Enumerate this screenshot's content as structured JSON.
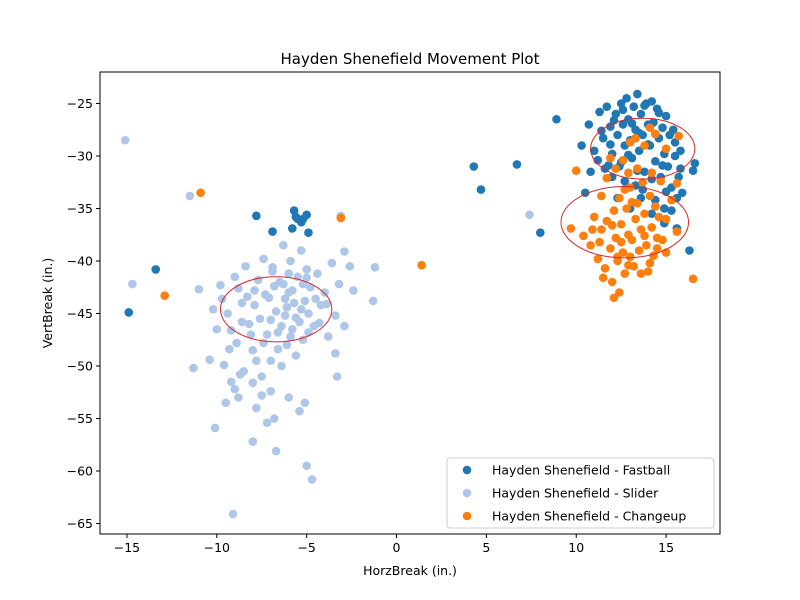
{
  "chart_data": {
    "type": "scatter",
    "title": "Hayden Shenefield Movement Plot",
    "xlabel": "HorzBreak (in.)",
    "ylabel": "VertBreak (in.)",
    "xlim": [
      -16.5,
      18.0
    ],
    "ylim": [
      -66.0,
      -22.0
    ],
    "xticks": [
      -15,
      -10,
      -5,
      0,
      5,
      10,
      15
    ],
    "yticks": [
      -25,
      -30,
      -35,
      -40,
      -45,
      -50,
      -55,
      -60,
      -65
    ],
    "grid": false,
    "legend_position": "lower-right",
    "series": [
      {
        "name": "Hayden Shenefield - Fastball",
        "color": "#1f77b4",
        "points": [
          [
            -14.9,
            -44.9
          ],
          [
            -13.4,
            -40.8
          ],
          [
            -7.8,
            -35.7
          ],
          [
            -6.9,
            -37.2
          ],
          [
            -5.7,
            -35.2
          ],
          [
            -5.5,
            -36.0
          ],
          [
            -5.2,
            -36.0
          ],
          [
            -5.0,
            -35.6
          ],
          [
            -5.8,
            -36.9
          ],
          [
            -4.9,
            -37.3
          ],
          [
            -5.6,
            -35.8
          ],
          [
            -5.3,
            -36.3
          ],
          [
            4.3,
            -31.0
          ],
          [
            4.7,
            -33.2
          ],
          [
            6.7,
            -30.8
          ],
          [
            8.0,
            -37.3
          ],
          [
            8.9,
            -26.5
          ],
          [
            16.3,
            -39.0
          ],
          [
            10.3,
            -29.0
          ],
          [
            10.7,
            -27.0
          ],
          [
            11.0,
            -29.5
          ],
          [
            11.3,
            -25.8
          ],
          [
            11.5,
            -28.3
          ],
          [
            11.7,
            -25.3
          ],
          [
            11.9,
            -27.2
          ],
          [
            12.0,
            -29.8
          ],
          [
            12.2,
            -26.0
          ],
          [
            12.3,
            -28.0
          ],
          [
            12.4,
            -31.0
          ],
          [
            12.5,
            -25.0
          ],
          [
            12.6,
            -27.0
          ],
          [
            12.7,
            -29.0
          ],
          [
            12.8,
            -24.5
          ],
          [
            12.9,
            -26.5
          ],
          [
            13.0,
            -28.5
          ],
          [
            13.1,
            -30.2
          ],
          [
            13.2,
            -25.3
          ],
          [
            13.3,
            -27.5
          ],
          [
            13.4,
            -24.1
          ],
          [
            13.5,
            -29.5
          ],
          [
            13.6,
            -26.0
          ],
          [
            13.7,
            -28.0
          ],
          [
            13.8,
            -31.5
          ],
          [
            13.9,
            -25.0
          ],
          [
            14.0,
            -27.0
          ],
          [
            14.1,
            -29.0
          ],
          [
            14.2,
            -24.8
          ],
          [
            14.3,
            -26.8
          ],
          [
            14.4,
            -30.5
          ],
          [
            14.5,
            -25.5
          ],
          [
            14.6,
            -28.3
          ],
          [
            14.7,
            -32.0
          ],
          [
            14.8,
            -27.3
          ],
          [
            14.9,
            -29.8
          ],
          [
            15.0,
            -26.2
          ],
          [
            15.1,
            -31.0
          ],
          [
            15.2,
            -28.0
          ],
          [
            15.3,
            -33.0
          ],
          [
            15.4,
            -27.5
          ],
          [
            15.5,
            -30.0
          ],
          [
            15.6,
            -34.0
          ],
          [
            15.7,
            -32.0
          ],
          [
            15.8,
            -29.5
          ],
          [
            15.9,
            -33.5
          ],
          [
            16.5,
            -31.4
          ],
          [
            16.6,
            -30.7
          ],
          [
            14.9,
            -35.0
          ],
          [
            13.6,
            -34.0
          ],
          [
            12.8,
            -33.0
          ],
          [
            12.0,
            -32.0
          ],
          [
            11.6,
            -31.2
          ],
          [
            11.2,
            -30.4
          ],
          [
            10.8,
            -31.5
          ],
          [
            10.5,
            -33.5
          ],
          [
            14.2,
            -35.5
          ],
          [
            13.0,
            -35.0
          ],
          [
            15.3,
            -35.2
          ],
          [
            12.3,
            -34.0
          ],
          [
            12.6,
            -25.6
          ],
          [
            13.1,
            -26.9
          ],
          [
            13.5,
            -27.8
          ],
          [
            14.0,
            -28.9
          ],
          [
            14.4,
            -27.9
          ],
          [
            14.8,
            -30.9
          ],
          [
            12.9,
            -29.9
          ],
          [
            13.4,
            -31.4
          ],
          [
            14.2,
            -32.2
          ],
          [
            15.0,
            -33.4
          ],
          [
            13.7,
            -33.2
          ],
          [
            12.7,
            -32.4
          ],
          [
            11.9,
            -28.9
          ],
          [
            11.4,
            -27.6
          ],
          [
            12.1,
            -26.6
          ],
          [
            13.8,
            -25.2
          ],
          [
            14.6,
            -25.9
          ],
          [
            15.5,
            -28.7
          ],
          [
            15.8,
            -31.2
          ],
          [
            14.4,
            -34.2
          ],
          [
            13.3,
            -32.8
          ],
          [
            12.5,
            -30.6
          ],
          [
            11.8,
            -30.9
          ],
          [
            14.9,
            -36.4
          ],
          [
            15.6,
            -36.9
          ]
        ]
      },
      {
        "name": "Hayden Shenefield - Slider",
        "color": "#aec7e8",
        "points": [
          [
            -15.1,
            -28.5
          ],
          [
            -14.7,
            -42.2
          ],
          [
            -11.5,
            -33.8
          ],
          [
            -11.0,
            -42.7
          ],
          [
            -11.3,
            -50.2
          ],
          [
            -10.4,
            -49.4
          ],
          [
            -10.1,
            -55.9
          ],
          [
            -9.1,
            -64.1
          ],
          [
            -3.1,
            -35.7
          ],
          [
            -2.9,
            -39.1
          ],
          [
            -1.2,
            -40.6
          ],
          [
            -1.3,
            -43.8
          ],
          [
            7.4,
            -35.6
          ],
          [
            -10.2,
            -44.6
          ],
          [
            -10.0,
            -46.5
          ],
          [
            -9.8,
            -42.3
          ],
          [
            -9.6,
            -49.9
          ],
          [
            -9.4,
            -45.0
          ],
          [
            -9.2,
            -51.5
          ],
          [
            -9.0,
            -41.5
          ],
          [
            -8.9,
            -47.8
          ],
          [
            -8.8,
            -53.0
          ],
          [
            -8.6,
            -44.0
          ],
          [
            -8.5,
            -50.5
          ],
          [
            -8.4,
            -40.5
          ],
          [
            -8.2,
            -46.0
          ],
          [
            -8.0,
            -48.5
          ],
          [
            -7.9,
            -42.8
          ],
          [
            -7.8,
            -54.0
          ],
          [
            -7.6,
            -45.5
          ],
          [
            -7.5,
            -51.0
          ],
          [
            -7.4,
            -39.8
          ],
          [
            -7.2,
            -47.0
          ],
          [
            -7.1,
            -43.5
          ],
          [
            -7.0,
            -49.5
          ],
          [
            -6.9,
            -41.0
          ],
          [
            -6.8,
            -55.0
          ],
          [
            -6.7,
            -44.8
          ],
          [
            -6.6,
            -46.8
          ],
          [
            -6.5,
            -42.0
          ],
          [
            -6.4,
            -50.0
          ],
          [
            -6.3,
            -38.5
          ],
          [
            -6.2,
            -45.2
          ],
          [
            -6.1,
            -48.0
          ],
          [
            -6.0,
            -43.0
          ],
          [
            -5.9,
            -40.0
          ],
          [
            -5.8,
            -46.5
          ],
          [
            -5.7,
            -44.0
          ],
          [
            -5.6,
            -49.0
          ],
          [
            -5.5,
            -41.5
          ],
          [
            -5.4,
            -45.8
          ],
          [
            -5.3,
            -39.0
          ],
          [
            -5.2,
            -47.5
          ],
          [
            -5.1,
            -43.8
          ],
          [
            -5.0,
            -40.8
          ],
          [
            -4.9,
            -45.0
          ],
          [
            -4.8,
            -42.5
          ],
          [
            -4.6,
            -46.2
          ],
          [
            -4.4,
            -41.2
          ],
          [
            -4.2,
            -44.2
          ],
          [
            -4.0,
            -43.0
          ],
          [
            -3.8,
            -47.2
          ],
          [
            -3.6,
            -40.2
          ],
          [
            -3.4,
            -45.2
          ],
          [
            -3.2,
            -42.2
          ],
          [
            -2.9,
            -46.2
          ],
          [
            -2.6,
            -40.5
          ],
          [
            -2.4,
            -42.8
          ],
          [
            -8.0,
            -57.2
          ],
          [
            -7.8,
            -49.5
          ],
          [
            -7.5,
            -52.8
          ],
          [
            -7.2,
            -55.4
          ],
          [
            -6.7,
            -58.1
          ],
          [
            -6.0,
            -53.0
          ],
          [
            -5.4,
            -54.3
          ],
          [
            -5.0,
            -59.5
          ],
          [
            -4.7,
            -60.8
          ],
          [
            -5.1,
            -53.5
          ],
          [
            -3.3,
            -51.0
          ],
          [
            -3.4,
            -48.8
          ],
          [
            -9.5,
            -53.5
          ],
          [
            -9.0,
            -52.2
          ],
          [
            -7.3,
            -43.2
          ],
          [
            -6.8,
            -42.4
          ],
          [
            -6.2,
            -43.6
          ],
          [
            -5.8,
            -42.8
          ],
          [
            -7.0,
            -45.6
          ],
          [
            -6.4,
            -46.2
          ],
          [
            -5.6,
            -45.4
          ],
          [
            -8.3,
            -43.4
          ],
          [
            -8.6,
            -45.8
          ],
          [
            -7.7,
            -41.8
          ],
          [
            -6.9,
            -40.6
          ],
          [
            -6.0,
            -41.2
          ],
          [
            -5.2,
            -42.2
          ],
          [
            -4.5,
            -43.6
          ],
          [
            -7.4,
            -47.8
          ],
          [
            -6.6,
            -48.4
          ],
          [
            -5.9,
            -47.2
          ],
          [
            -8.1,
            -47.0
          ],
          [
            -9.2,
            -46.6
          ],
          [
            -4.3,
            -45.9
          ],
          [
            -3.9,
            -44.1
          ],
          [
            -9.7,
            -43.6
          ],
          [
            -8.8,
            -42.6
          ],
          [
            -5.3,
            -44.6
          ],
          [
            -4.9,
            -46.8
          ],
          [
            -6.1,
            -44.4
          ],
          [
            -7.9,
            -44.2
          ],
          [
            -6.3,
            -42.2
          ],
          [
            -5.0,
            -41.6
          ],
          [
            -8.7,
            -50.8
          ],
          [
            -8.0,
            -51.6
          ],
          [
            -7.0,
            -52.4
          ],
          [
            -9.3,
            -48.4
          ]
        ]
      },
      {
        "name": "Hayden Shenefield - Changeup",
        "color": "#ff7f0e",
        "points": [
          [
            -10.9,
            -33.5
          ],
          [
            -12.9,
            -43.3
          ],
          [
            -3.1,
            -35.9
          ],
          [
            1.4,
            -40.4
          ],
          [
            16.5,
            -41.7
          ],
          [
            9.7,
            -36.9
          ],
          [
            10.0,
            -31.4
          ],
          [
            13.3,
            -28.3
          ],
          [
            14.1,
            -27.3
          ],
          [
            14.4,
            -27.9
          ],
          [
            15.0,
            -29.3
          ],
          [
            15.7,
            -28.1
          ],
          [
            13.8,
            -29.0
          ],
          [
            13.0,
            -28.7
          ],
          [
            10.4,
            -37.6
          ],
          [
            10.8,
            -38.5
          ],
          [
            11.0,
            -35.8
          ],
          [
            11.2,
            -39.8
          ],
          [
            11.4,
            -37.0
          ],
          [
            11.6,
            -40.7
          ],
          [
            11.7,
            -36.2
          ],
          [
            11.9,
            -38.8
          ],
          [
            12.0,
            -42.0
          ],
          [
            12.1,
            -35.2
          ],
          [
            12.2,
            -37.8
          ],
          [
            12.3,
            -40.0
          ],
          [
            12.4,
            -34.0
          ],
          [
            12.5,
            -36.5
          ],
          [
            12.6,
            -39.2
          ],
          [
            12.7,
            -41.2
          ],
          [
            12.8,
            -35.0
          ],
          [
            12.9,
            -37.5
          ],
          [
            13.0,
            -33.0
          ],
          [
            13.1,
            -38.0
          ],
          [
            13.2,
            -40.5
          ],
          [
            13.3,
            -36.0
          ],
          [
            13.4,
            -34.5
          ],
          [
            13.5,
            -39.0
          ],
          [
            13.6,
            -37.0
          ],
          [
            13.7,
            -32.5
          ],
          [
            13.8,
            -35.5
          ],
          [
            13.9,
            -38.5
          ],
          [
            14.0,
            -41.0
          ],
          [
            14.1,
            -33.8
          ],
          [
            14.2,
            -36.8
          ],
          [
            14.3,
            -39.5
          ],
          [
            14.4,
            -34.8
          ],
          [
            14.5,
            -37.8
          ],
          [
            14.6,
            -35.8
          ],
          [
            14.8,
            -38.0
          ],
          [
            15.0,
            -36.0
          ],
          [
            15.3,
            -34.2
          ],
          [
            15.6,
            -37.2
          ],
          [
            15.0,
            -39.2
          ],
          [
            12.1,
            -43.5
          ],
          [
            12.4,
            -43.0
          ],
          [
            11.4,
            -33.8
          ],
          [
            11.7,
            -32.1
          ],
          [
            12.2,
            -31.2
          ],
          [
            12.6,
            -30.4
          ],
          [
            12.9,
            -31.6
          ],
          [
            13.1,
            -34.4
          ],
          [
            12.7,
            -33.2
          ],
          [
            11.9,
            -30.2
          ],
          [
            14.7,
            -32.4
          ],
          [
            14.2,
            -31.6
          ],
          [
            15.6,
            -32.6
          ],
          [
            13.4,
            -31.2
          ],
          [
            12.3,
            -39.6
          ],
          [
            12.9,
            -40.4
          ],
          [
            13.6,
            -41.2
          ],
          [
            14.1,
            -40.2
          ],
          [
            12.5,
            -38.2
          ],
          [
            13.0,
            -39.6
          ],
          [
            11.3,
            -38.2
          ],
          [
            10.9,
            -37.0
          ],
          [
            13.8,
            -37.6
          ],
          [
            14.5,
            -38.8
          ],
          [
            12.0,
            -36.6
          ],
          [
            11.5,
            -41.6
          ]
        ]
      }
    ],
    "ellipses": [
      {
        "color": "#d62728",
        "center": [
          -6.7,
          -44.6
        ],
        "width": 6.2,
        "height": 6.2
      },
      {
        "color": "#d62728",
        "center": [
          12.7,
          -36.3
        ],
        "width": 7.1,
        "height": 6.8
      },
      {
        "color": "#d62728",
        "center": [
          13.7,
          -29.3
        ],
        "width": 5.8,
        "height": 5.8
      }
    ]
  }
}
